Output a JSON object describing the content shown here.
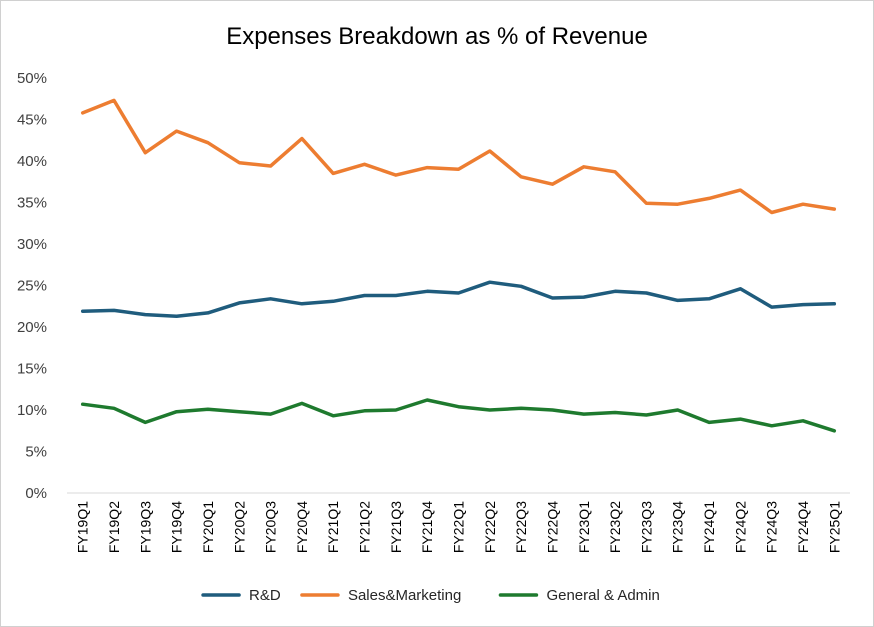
{
  "chart_data": {
    "type": "line",
    "title": "Expenses Breakdown as % of Revenue",
    "xlabel": "",
    "ylabel": "",
    "ylim": [
      0,
      50
    ],
    "yticks": [
      "0%",
      "5%",
      "10%",
      "15%",
      "20%",
      "25%",
      "30%",
      "35%",
      "40%",
      "45%",
      "50%"
    ],
    "grid": false,
    "legend_position": "bottom",
    "categories": [
      "FY19Q1",
      "FY19Q2",
      "FY19Q3",
      "FY19Q4",
      "FY20Q1",
      "FY20Q2",
      "FY20Q3",
      "FY20Q4",
      "FY21Q1",
      "FY21Q2",
      "FY21Q3",
      "FY21Q4",
      "FY22Q1",
      "FY22Q2",
      "FY22Q3",
      "FY22Q4",
      "FY23Q1",
      "FY23Q2",
      "FY23Q3",
      "FY23Q4",
      "FY24Q1",
      "FY24Q2",
      "FY24Q3",
      "FY24Q4",
      "FY25Q1"
    ],
    "series": [
      {
        "name": "R&D",
        "color": "#1F5C7D",
        "values": [
          21.9,
          22.0,
          21.5,
          21.3,
          21.7,
          22.9,
          23.4,
          22.8,
          23.1,
          23.8,
          23.8,
          24.3,
          24.1,
          25.4,
          24.9,
          23.5,
          23.6,
          24.3,
          24.1,
          23.2,
          23.4,
          24.6,
          22.4,
          22.7,
          22.8
        ]
      },
      {
        "name": "Sales&Marketing",
        "color": "#ED7D31",
        "values": [
          45.8,
          47.3,
          41.0,
          43.6,
          42.2,
          39.8,
          39.4,
          42.7,
          38.5,
          39.6,
          38.3,
          39.2,
          39.0,
          41.2,
          38.1,
          37.2,
          39.3,
          38.7,
          34.9,
          34.8,
          35.5,
          36.5,
          33.8,
          34.8,
          34.2
        ]
      },
      {
        "name": "General & Admin",
        "color": "#1E7A2E",
        "values": [
          10.7,
          10.2,
          8.5,
          9.8,
          10.1,
          9.8,
          9.5,
          10.8,
          9.3,
          9.9,
          10.0,
          11.2,
          10.4,
          10.0,
          10.2,
          10.0,
          9.5,
          9.7,
          9.4,
          10.0,
          8.5,
          8.9,
          8.1,
          8.7,
          7.5
        ]
      }
    ]
  }
}
